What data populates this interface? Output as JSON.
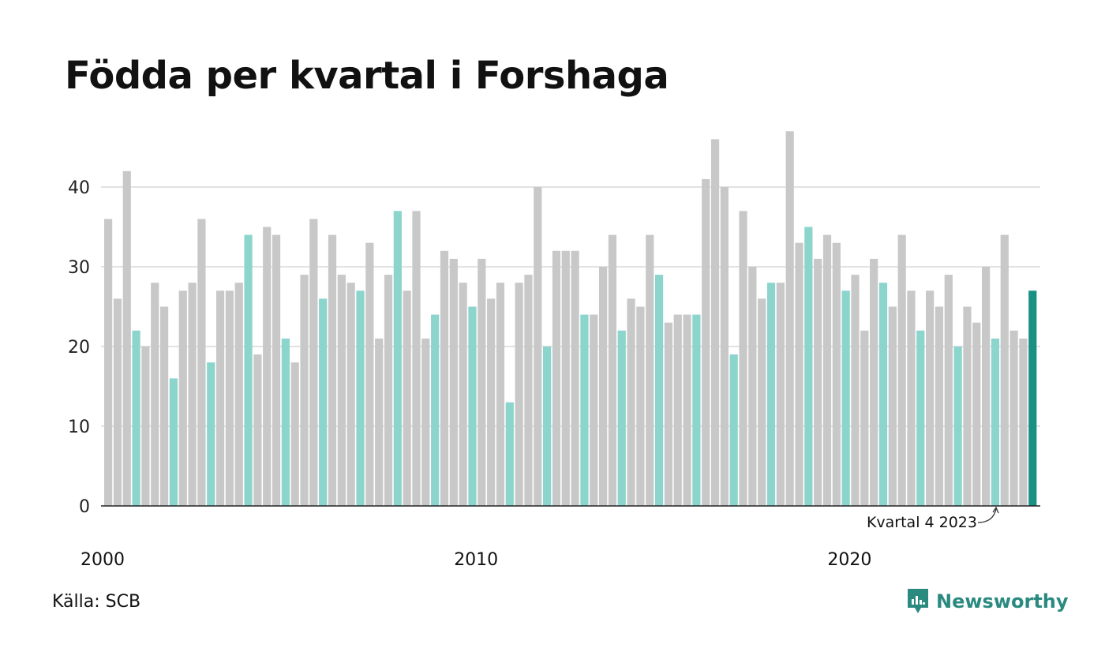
{
  "chart_data": {
    "type": "bar",
    "title": "Födda per kvartal i Forshaga",
    "xlabel": "",
    "ylabel": "",
    "ylim": [
      0,
      48
    ],
    "yticks": [
      0,
      10,
      20,
      30,
      40
    ],
    "xtick_labels": [
      {
        "year": 2000,
        "label": "2000"
      },
      {
        "year": 2010,
        "label": "2010"
      },
      {
        "year": 2020,
        "label": "2020"
      }
    ],
    "start_year": 2000,
    "values": [
      36,
      26,
      42,
      22,
      20,
      28,
      25,
      16,
      27,
      28,
      36,
      18,
      27,
      27,
      28,
      34,
      19,
      35,
      34,
      21,
      18,
      29,
      36,
      26,
      34,
      29,
      28,
      27,
      33,
      21,
      29,
      37,
      27,
      37,
      21,
      24,
      32,
      31,
      28,
      25,
      31,
      26,
      28,
      13,
      28,
      29,
      40,
      20,
      32,
      32,
      32,
      24,
      24,
      30,
      34,
      22,
      26,
      25,
      34,
      29,
      23,
      24,
      24,
      24,
      41,
      46,
      40,
      19,
      37,
      30,
      26,
      28,
      28,
      47,
      33,
      35,
      31,
      34,
      33,
      27,
      29,
      22,
      31,
      28,
      25,
      34,
      27,
      22,
      27,
      25,
      29,
      20,
      25,
      23,
      30,
      21,
      34,
      22,
      21,
      27
    ],
    "annotation": "Kvartal 4 2023",
    "grid": true,
    "colors": {
      "default": "#c8c8c8",
      "q4": "#8cd5cc",
      "highlight": "#1a8f84",
      "grid": "#e2e2e2",
      "axis": "#222222",
      "annotation_arrow": "#333333"
    }
  },
  "footer": {
    "source": "Källa: SCB",
    "brand": "Newsworthy",
    "brand_icon": "newsworthy-logo-icon",
    "brand_color": "#2a8a80"
  }
}
